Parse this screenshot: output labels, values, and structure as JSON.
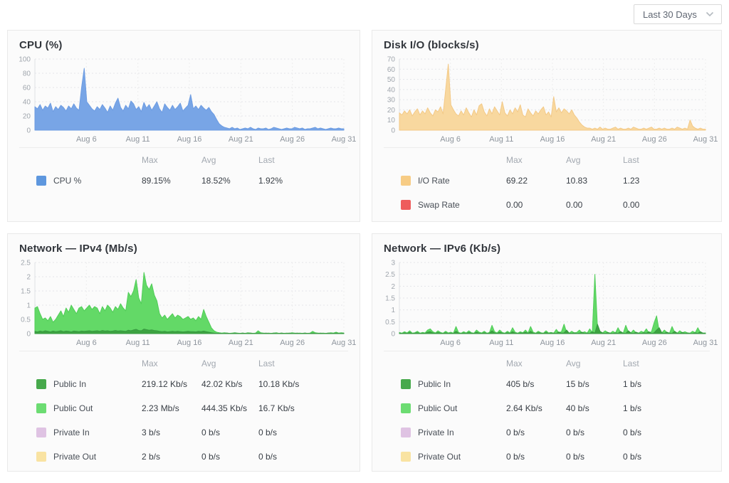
{
  "toolbar": {
    "range_select": {
      "value": "Last 30 Days"
    }
  },
  "colors": {
    "cpu_area": "#78a5e6",
    "cpu_stroke": "#6d9ce2",
    "cpu_swatch": "#5e97de",
    "io_area": "#f8d89f",
    "io_stroke": "#f3c987",
    "io_swatch": "#f7cc85",
    "swap_swatch": "#ee5c5c",
    "public_in_area": "#3da341",
    "public_in_stroke": "#379940",
    "public_in_swatch": "#47a94c",
    "public_out_area": "#63d967",
    "public_out_stroke": "#50cd58",
    "public_out_swatch": "#6cdc72",
    "private_in_swatch": "#dfc3e3",
    "private_out_swatch": "#f9e3a2"
  },
  "panels": [
    {
      "title": "CPU (%)",
      "legend": {
        "header": {
          "max": "Max",
          "avg": "Avg",
          "last": "Last"
        },
        "rows": [
          {
            "color": "#5e97de",
            "label": "CPU %",
            "max": "89.15%",
            "avg": "18.52%",
            "last": "1.92%"
          }
        ]
      }
    },
    {
      "title": "Disk I/O (blocks/s)",
      "legend": {
        "header": {
          "max": "Max",
          "avg": "Avg",
          "last": "Last"
        },
        "rows": [
          {
            "color": "#f7cc85",
            "label": "I/O Rate",
            "max": "69.22",
            "avg": "10.83",
            "last": "1.23"
          },
          {
            "color": "#ee5c5c",
            "label": "Swap Rate",
            "max": "0.00",
            "avg": "0.00",
            "last": "0.00"
          }
        ]
      }
    },
    {
      "title": "Network — IPv4 (Mb/s)",
      "legend": {
        "header": {
          "max": "Max",
          "avg": "Avg",
          "last": "Last"
        },
        "rows": [
          {
            "color": "#47a94c",
            "label": "Public In",
            "max": "219.12 Kb/s",
            "avg": "42.02 Kb/s",
            "last": "10.18 Kb/s"
          },
          {
            "color": "#6cdc72",
            "label": "Public Out",
            "max": "2.23 Mb/s",
            "avg": "444.35 Kb/s",
            "last": "16.7 Kb/s"
          },
          {
            "color": "#dfc3e3",
            "label": "Private In",
            "max": "3 b/s",
            "avg": "0 b/s",
            "last": "0 b/s"
          },
          {
            "color": "#f9e3a2",
            "label": "Private Out",
            "max": "2 b/s",
            "avg": "0 b/s",
            "last": "0 b/s"
          }
        ]
      }
    },
    {
      "title": "Network — IPv6 (Kb/s)",
      "legend": {
        "header": {
          "max": "Max",
          "avg": "Avg",
          "last": "Last"
        },
        "rows": [
          {
            "color": "#47a94c",
            "label": "Public In",
            "max": "405 b/s",
            "avg": "15 b/s",
            "last": "1 b/s"
          },
          {
            "color": "#6cdc72",
            "label": "Public Out",
            "max": "2.64 Kb/s",
            "avg": "40 b/s",
            "last": "1 b/s"
          },
          {
            "color": "#dfc3e3",
            "label": "Private In",
            "max": "0 b/s",
            "avg": "0 b/s",
            "last": "0 b/s"
          },
          {
            "color": "#f9e3a2",
            "label": "Private Out",
            "max": "0 b/s",
            "avg": "0 b/s",
            "last": "0 b/s"
          }
        ]
      }
    }
  ],
  "chart_data": [
    {
      "type": "area",
      "title": "CPU (%)",
      "ylabel": "CPU %",
      "ylim": [
        0,
        100
      ],
      "yticks": [
        0,
        20,
        40,
        60,
        80,
        100
      ],
      "xlim": [
        1,
        31
      ],
      "xticks": [
        6,
        11,
        16,
        21,
        26,
        31
      ],
      "xtick_prefix": "Aug ",
      "grid": "dashed",
      "legend_position": "below",
      "series": [
        {
          "name": "CPU %",
          "color": "#78a5e6",
          "stroke": "#6d9ce2",
          "values": [
            33,
            30,
            36,
            28,
            34,
            31,
            38,
            26,
            33,
            29,
            35,
            32,
            27,
            34,
            30,
            37,
            31,
            28,
            60,
            87,
            40,
            35,
            30,
            27,
            33,
            29,
            36,
            31,
            25,
            34,
            28,
            38,
            45,
            32,
            27,
            35,
            30,
            41,
            37,
            29,
            33,
            26,
            39,
            31,
            36,
            28,
            34,
            40,
            30,
            25,
            37,
            32,
            28,
            35,
            29,
            33,
            38,
            27,
            31,
            35,
            50,
            30,
            34,
            29,
            35,
            31,
            28,
            32,
            26,
            22,
            15,
            9,
            6,
            4,
            3,
            2,
            4,
            2,
            3,
            1,
            2,
            3,
            2,
            4,
            2,
            1,
            3,
            2,
            2,
            3,
            1,
            2,
            4,
            3,
            2,
            1,
            2,
            3,
            2,
            2,
            4,
            3,
            2,
            3,
            1,
            2,
            2,
            3,
            4,
            2,
            3,
            2,
            1,
            2,
            3,
            2,
            2,
            3,
            2,
            2
          ]
        }
      ]
    },
    {
      "type": "area",
      "title": "Disk I/O (blocks/s)",
      "ylim": [
        0,
        70
      ],
      "yticks": [
        0,
        10,
        20,
        30,
        40,
        50,
        60,
        70
      ],
      "xlim": [
        1,
        31
      ],
      "xticks": [
        6,
        11,
        16,
        21,
        26,
        31
      ],
      "xtick_prefix": "Aug ",
      "grid": "dashed",
      "legend_position": "below",
      "series": [
        {
          "name": "I/O Rate",
          "color": "#f8d89f",
          "stroke": "#f3c987",
          "values": [
            17,
            15,
            19,
            16,
            20,
            14,
            18,
            21,
            15,
            19,
            16,
            22,
            17,
            14,
            20,
            18,
            23,
            16,
            40,
            65,
            25,
            20,
            16,
            14,
            19,
            15,
            22,
            17,
            13,
            20,
            15,
            24,
            26,
            18,
            14,
            21,
            16,
            23,
            19,
            15,
            28,
            17,
            14,
            20,
            16,
            22,
            18,
            25,
            15,
            13,
            21,
            17,
            14,
            19,
            16,
            20,
            23,
            15,
            18,
            13,
            33,
            18,
            22,
            17,
            21,
            19,
            16,
            20,
            15,
            12,
            8,
            5,
            3,
            2,
            2,
            1,
            2,
            1,
            3,
            1,
            2,
            1,
            1,
            2,
            3,
            1,
            2,
            1,
            1,
            2,
            1,
            3,
            2,
            1,
            1,
            2,
            1,
            2,
            3,
            1,
            1,
            2,
            1,
            2,
            1,
            1,
            2,
            1,
            3,
            2,
            1,
            2,
            1,
            10,
            4,
            2,
            1,
            2,
            1,
            1
          ]
        },
        {
          "name": "Swap Rate",
          "color": "#ee5c5c",
          "stroke": "#ee5c5c",
          "values": [
            0,
            0
          ]
        }
      ]
    },
    {
      "type": "area",
      "title": "Network — IPv4 (Mb/s)",
      "ylim": [
        0,
        2.5
      ],
      "yticks": [
        0,
        0.5,
        1,
        1.5,
        2,
        2.5
      ],
      "xlim": [
        1,
        31
      ],
      "xticks": [
        6,
        11,
        16,
        21,
        26,
        31
      ],
      "xtick_prefix": "Aug ",
      "grid": "dashed",
      "legend_position": "below",
      "series": [
        {
          "name": "Public Out",
          "color": "#63d967",
          "stroke": "#50cd58",
          "values": [
            0.9,
            0.95,
            0.7,
            0.5,
            0.55,
            0.45,
            0.6,
            0.4,
            0.5,
            0.65,
            0.8,
            0.6,
            0.9,
            0.75,
            1.0,
            0.85,
            0.7,
            0.9,
            0.95,
            0.8,
            0.9,
            1.0,
            0.85,
            0.95,
            0.9,
            0.7,
            0.95,
            0.8,
            1.0,
            0.9,
            0.75,
            0.95,
            0.85,
            1.05,
            0.9,
            0.8,
            1.45,
            1.3,
            1.5,
            1.9,
            1.25,
            1.05,
            2.15,
            1.7,
            1.55,
            1.75,
            1.35,
            1.15,
            0.7,
            0.55,
            0.65,
            0.5,
            0.6,
            0.7,
            0.55,
            0.65,
            0.6,
            0.5,
            0.55,
            0.6,
            0.5,
            0.55,
            0.45,
            0.6,
            0.5,
            0.85,
            0.6,
            0.4,
            0.2,
            0.1,
            0.05,
            0.03,
            0.02,
            0.03,
            0.02,
            0.01,
            0.02,
            0.03,
            0.02,
            0.01,
            0.02,
            0.01,
            0.03,
            0.02,
            0.01,
            0.02,
            0.1,
            0.03,
            0.02,
            0.01,
            0.02,
            0.01,
            0.02,
            0.03,
            0.01,
            0.02,
            0.01,
            0.02,
            0.01,
            0.03,
            0.02,
            0.01,
            0.02,
            0.01,
            0.02,
            0.01,
            0.02,
            0.08,
            0.03,
            0.02,
            0.01,
            0.02,
            0.01,
            0.02,
            0.03,
            0.02,
            0.05,
            0.02,
            0.03,
            0.02
          ]
        },
        {
          "name": "Public In",
          "color": "#3da341",
          "stroke": "#379940",
          "values": [
            0.08,
            0.06,
            0.09,
            0.07,
            0.1,
            0.08,
            0.06,
            0.09,
            0.07,
            0.08,
            0.1,
            0.07,
            0.09,
            0.08,
            0.06,
            0.09,
            0.08,
            0.07,
            0.09,
            0.08,
            0.09,
            0.1,
            0.08,
            0.09,
            0.1,
            0.08,
            0.11,
            0.09,
            0.1,
            0.08,
            0.09,
            0.11,
            0.09,
            0.1,
            0.09,
            0.08,
            0.12,
            0.1,
            0.13,
            0.15,
            0.11,
            0.1,
            0.16,
            0.14,
            0.12,
            0.13,
            0.11,
            0.1,
            0.08,
            0.07,
            0.08,
            0.06,
            0.07,
            0.08,
            0.07,
            0.08,
            0.07,
            0.06,
            0.07,
            0.08,
            0.07,
            0.07,
            0.06,
            0.08,
            0.07,
            0.09,
            0.07,
            0.05,
            0.03,
            0.02,
            0.01,
            0.02,
            0.01,
            0.01,
            0.02,
            0.01,
            0.01,
            0.02,
            0.01,
            0.01,
            0.02,
            0.01,
            0.01,
            0.02,
            0.01,
            0.01,
            0.02,
            0.01,
            0.01,
            0.02,
            0.01,
            0.01,
            0.02,
            0.01,
            0.01,
            0.02,
            0.01,
            0.01,
            0.02,
            0.01,
            0.01,
            0.02,
            0.01,
            0.01,
            0.02,
            0.01,
            0.01,
            0.02,
            0.01,
            0.01,
            0.02,
            0.01,
            0.01,
            0.02,
            0.01,
            0.01,
            0.02,
            0.01,
            0.01,
            0.02
          ]
        }
      ]
    },
    {
      "type": "area",
      "title": "Network — IPv6 (Kb/s)",
      "ylim": [
        0,
        3
      ],
      "yticks": [
        0,
        0.5,
        1,
        1.5,
        2,
        2.5,
        3
      ],
      "xlim": [
        1,
        31
      ],
      "xticks": [
        6,
        11,
        16,
        21,
        26,
        31
      ],
      "xtick_prefix": "Aug ",
      "grid": "dashed",
      "legend_position": "below",
      "series": [
        {
          "name": "Public Out",
          "color": "#63d967",
          "stroke": "#50cd58",
          "values": [
            0.05,
            0.02,
            0.08,
            0.03,
            0.12,
            0.02,
            0.04,
            0.1,
            0.02,
            0.05,
            0.03,
            0.15,
            0.2,
            0.08,
            0.03,
            0.12,
            0.05,
            0.02,
            0.1,
            0.03,
            0.06,
            0.02,
            0.3,
            0.05,
            0.02,
            0.08,
            0.03,
            0.12,
            0.04,
            0.02,
            0.15,
            0.06,
            0.03,
            0.1,
            0.02,
            0.05,
            0.35,
            0.08,
            0.03,
            0.15,
            0.05,
            0.02,
            0.1,
            0.03,
            0.25,
            0.06,
            0.02,
            0.08,
            0.04,
            0.15,
            0.03,
            0.3,
            0.06,
            0.02,
            0.1,
            0.04,
            0.02,
            0.12,
            0.03,
            0.05,
            0.02,
            0.18,
            0.04,
            0.08,
            0.4,
            0.06,
            0.02,
            0.1,
            0.03,
            0.05,
            0.15,
            0.03,
            0.08,
            0.02,
            0.2,
            0.04,
            2.5,
            0.3,
            0.08,
            0.03,
            0.12,
            0.05,
            0.02,
            0.1,
            0.03,
            0.25,
            0.05,
            0.02,
            0.35,
            0.08,
            0.03,
            0.15,
            0.04,
            0.02,
            0.1,
            0.05,
            0.2,
            0.03,
            0.08,
            0.45,
            0.75,
            0.1,
            0.03,
            0.15,
            0.05,
            0.02,
            0.3,
            0.06,
            0.02,
            0.12,
            0.04,
            0.08,
            0.03,
            0.02,
            0.1,
            0.04,
            0.25,
            0.05,
            0.02,
            0.03
          ]
        },
        {
          "name": "Public In",
          "color": "#3da341",
          "stroke": "#379940",
          "values": [
            0.02,
            0.01,
            0.03,
            0.01,
            0.05,
            0.01,
            0.02,
            0.04,
            0.01,
            0.02,
            0.01,
            0.06,
            0.08,
            0.03,
            0.01,
            0.05,
            0.02,
            0.01,
            0.04,
            0.01,
            0.02,
            0.01,
            0.1,
            0.02,
            0.01,
            0.03,
            0.01,
            0.05,
            0.02,
            0.01,
            0.06,
            0.02,
            0.01,
            0.04,
            0.01,
            0.02,
            0.12,
            0.03,
            0.01,
            0.06,
            0.02,
            0.01,
            0.04,
            0.01,
            0.08,
            0.02,
            0.01,
            0.03,
            0.02,
            0.06,
            0.01,
            0.1,
            0.02,
            0.01,
            0.04,
            0.02,
            0.01,
            0.05,
            0.01,
            0.03,
            0.02,
            0.01,
            0.07,
            0.02,
            0.03,
            0.15,
            0.02,
            0.01,
            0.04,
            0.01,
            0.02,
            0.06,
            0.01,
            0.03,
            0.01,
            0.08,
            0.02,
            0.4,
            0.1,
            0.03,
            0.01,
            0.05,
            0.02,
            0.01,
            0.04,
            0.01,
            0.09,
            0.02,
            0.01,
            0.12,
            0.03,
            0.01,
            0.06,
            0.02,
            0.01,
            0.04,
            0.02,
            0.08,
            0.01,
            0.03,
            0.15,
            0.25,
            0.04,
            0.01,
            0.06,
            0.02,
            0.01,
            0.1,
            0.02,
            0.01,
            0.05,
            0.01,
            0.03,
            0.01,
            0.01,
            0.04,
            0.01,
            0.08,
            0.02,
            0.01
          ]
        }
      ]
    }
  ]
}
